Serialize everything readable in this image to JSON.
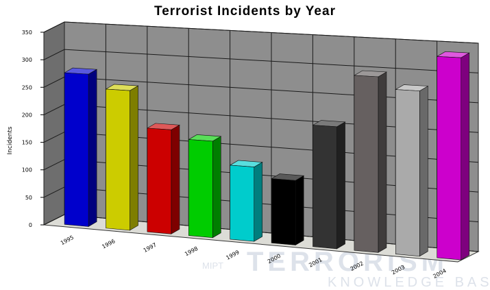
{
  "chart_data": {
    "type": "bar",
    "title": "Terrorist Incidents by Year",
    "ylabel": "Incidents",
    "xlabel": "",
    "ylim": [
      0,
      350
    ],
    "yticks": [
      0,
      50,
      100,
      150,
      200,
      250,
      300,
      350
    ],
    "categories": [
      "1995",
      "1996",
      "1997",
      "1998",
      "1999",
      "2000",
      "2001",
      "2002",
      "2003",
      "2004"
    ],
    "values": [
      275,
      250,
      185,
      170,
      130,
      112,
      210,
      300,
      280,
      340
    ],
    "bar_colors": [
      "#0000cc",
      "#cccc00",
      "#cc0000",
      "#00cc00",
      "#00cccc",
      "#000000",
      "#333333",
      "#666060",
      "#aaaaaa",
      "#cc00cc"
    ],
    "grid": true,
    "legend": "none"
  },
  "watermark": {
    "prefix": "MIPT",
    "word": "TERRORISM",
    "sub": "KNOWLEDGE BAS"
  }
}
